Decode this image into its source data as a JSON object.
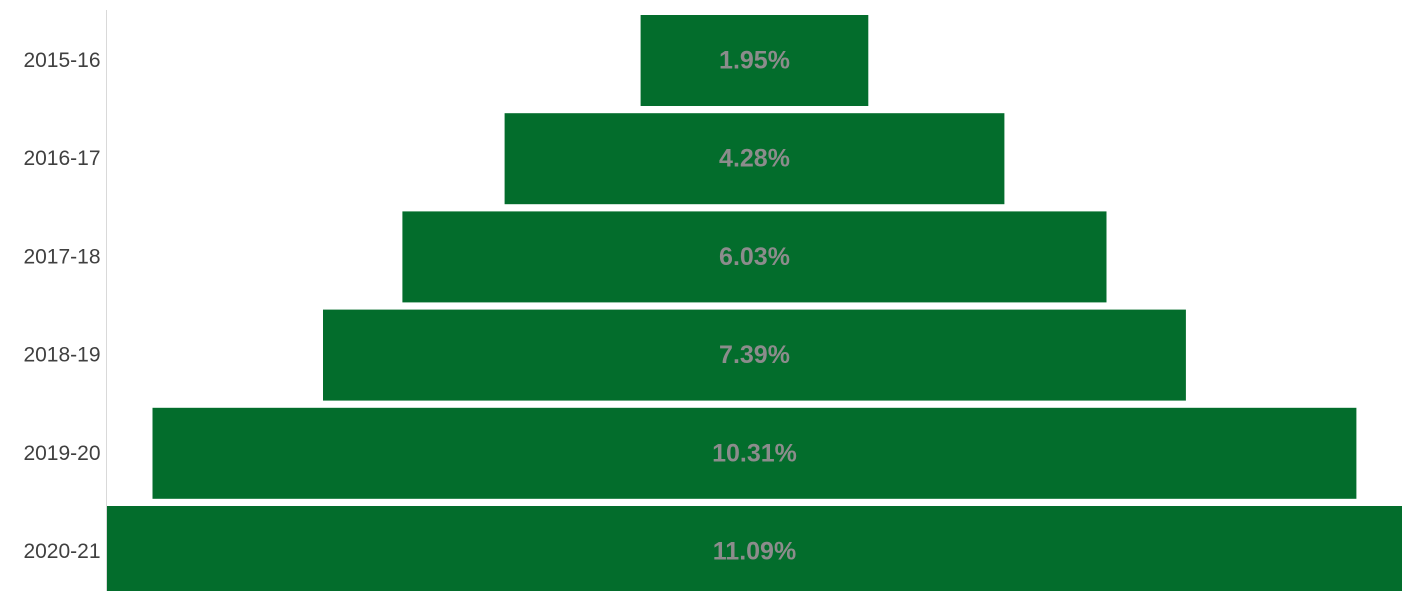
{
  "chart_data": {
    "type": "bar",
    "orientation": "horizontal-centered",
    "title": "",
    "xlabel": "",
    "ylabel": "",
    "categories": [
      "2015-16",
      "2016-17",
      "2017-18",
      "2018-19",
      "2019-20",
      "2020-21"
    ],
    "values": [
      1.95,
      4.28,
      6.03,
      7.39,
      10.31,
      11.09
    ],
    "data_labels": [
      "1.95%",
      "4.28%",
      "6.03%",
      "7.39%",
      "10.31%",
      "11.09%"
    ],
    "xlim": [
      0,
      11.09
    ],
    "grid": false,
    "legend": "none",
    "colors": {
      "bar": "#036D2C",
      "data_label": "#8C8C8C",
      "axis": "#D9D9D9",
      "category_label": "#404040"
    }
  }
}
